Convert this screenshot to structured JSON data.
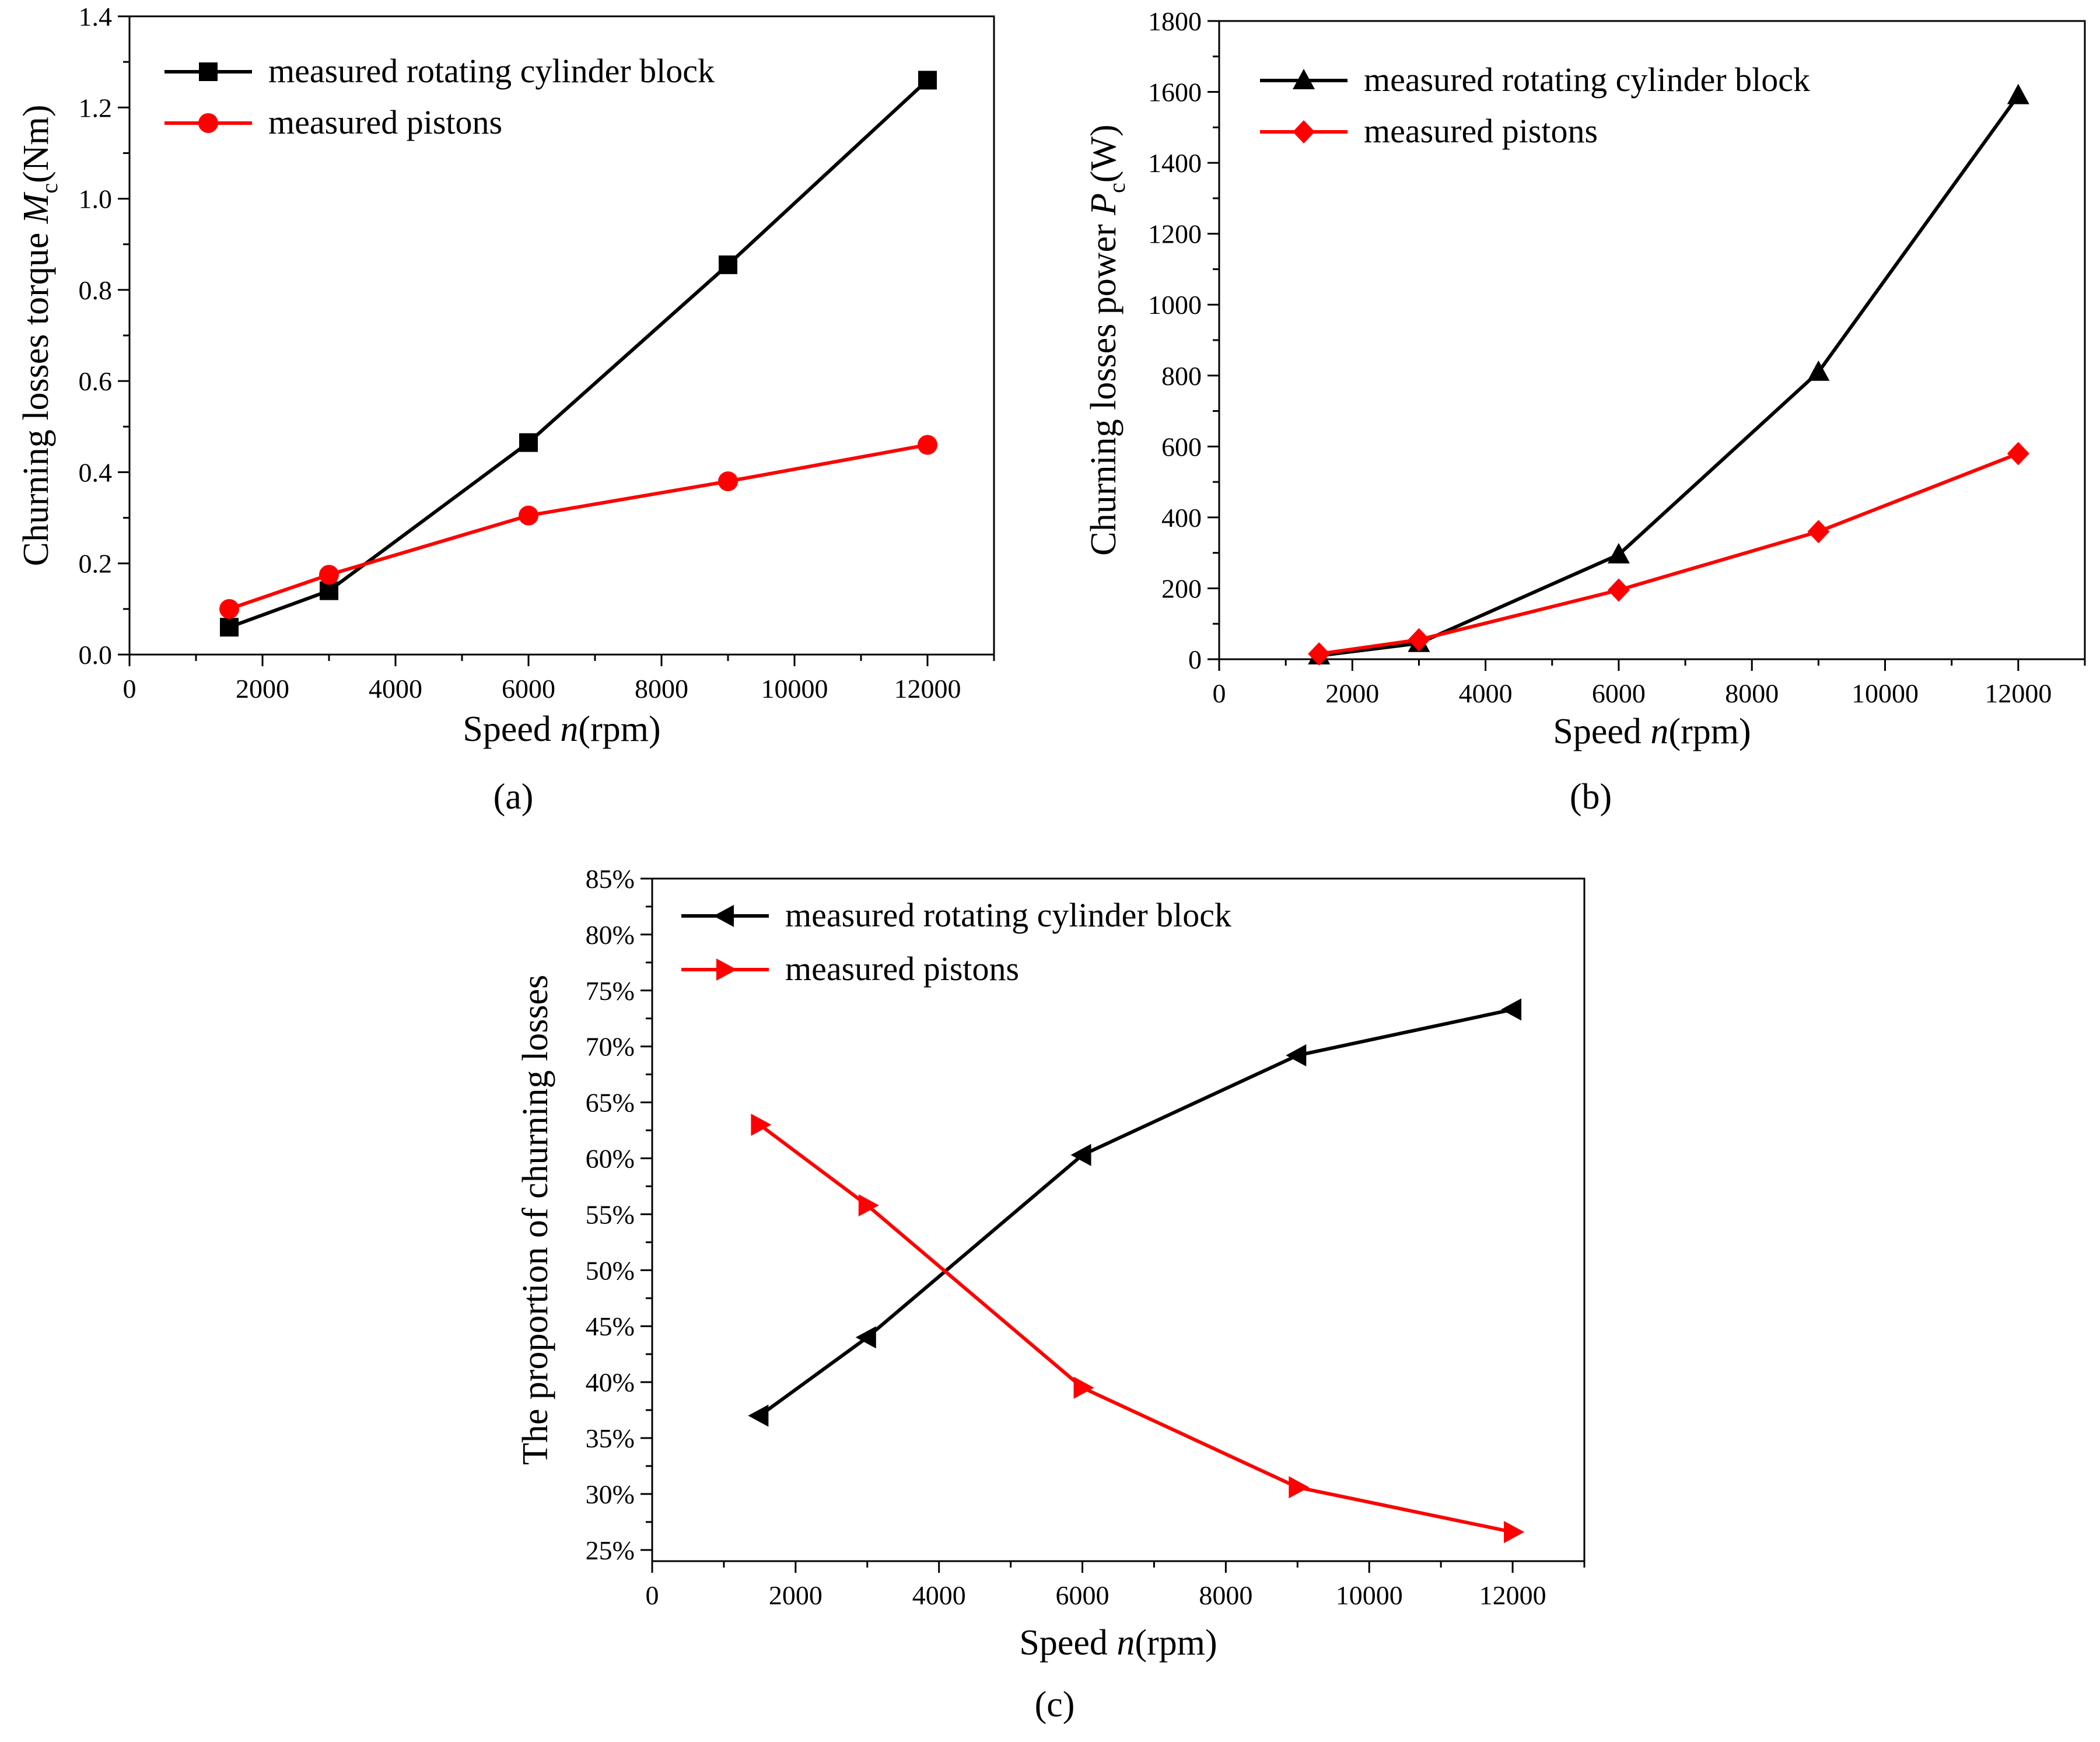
{
  "figure": {
    "panel_labels": [
      "(a)",
      "(b)",
      "(c)"
    ]
  },
  "chart_data": [
    {
      "id": "a",
      "type": "line",
      "panel_label": "(a)",
      "title": "",
      "xlabel": "Speed n(rpm)",
      "xlabel_parts": {
        "pre": "Speed ",
        "italic": "n",
        "post": "(rpm)"
      },
      "ylabel": "Churning losses torque Mc(Nm)",
      "ylabel_parts": {
        "pre": "Churning losses torque ",
        "italic": "M",
        "sub": "c",
        "post": "(Nm)"
      },
      "xlim": [
        0,
        13000
      ],
      "ylim": [
        0,
        1.4
      ],
      "xticks": [
        0,
        2000,
        4000,
        6000,
        8000,
        10000,
        12000
      ],
      "yticks": [
        0,
        0.2,
        0.4,
        0.6,
        0.8,
        1.0,
        1.2,
        1.4
      ],
      "ytick_labels": [
        "0.0",
        "0.2",
        "0.4",
        "0.6",
        "0.8",
        "1.0",
        "1.2",
        "1.4"
      ],
      "legend_position": "top-left",
      "x": [
        1500,
        3000,
        6000,
        9000,
        12000
      ],
      "series": [
        {
          "name": "measured rotating cylinder block",
          "color": "#000000",
          "marker": "square",
          "values": [
            0.06,
            0.14,
            0.465,
            0.855,
            1.26
          ]
        },
        {
          "name": "measured pistons",
          "color": "#ff0000",
          "marker": "circle",
          "values": [
            0.1,
            0.175,
            0.305,
            0.38,
            0.46
          ]
        }
      ]
    },
    {
      "id": "b",
      "type": "line",
      "panel_label": "(b)",
      "title": "",
      "xlabel": "Speed n(rpm)",
      "xlabel_parts": {
        "pre": "Speed ",
        "italic": "n",
        "post": "(rpm)"
      },
      "ylabel": "Churning losses power Pc(W)",
      "ylabel_parts": {
        "pre": "Churning losses power ",
        "italic": "P",
        "sub": "c",
        "post": "(W)"
      },
      "xlim": [
        0,
        13000
      ],
      "ylim": [
        0,
        1800
      ],
      "xticks": [
        0,
        2000,
        4000,
        6000,
        8000,
        10000,
        12000
      ],
      "yticks": [
        0,
        200,
        400,
        600,
        800,
        1000,
        1200,
        1400,
        1600,
        1800
      ],
      "ytick_labels": [
        "0",
        "200",
        "400",
        "600",
        "800",
        "1000",
        "1200",
        "1400",
        "1600",
        "1800"
      ],
      "legend_position": "top-left",
      "x": [
        1500,
        3000,
        6000,
        9000,
        12000
      ],
      "series": [
        {
          "name": "measured rotating cylinder block",
          "color": "#000000",
          "marker": "triangle-up",
          "values": [
            10,
            45,
            295,
            810,
            1590
          ]
        },
        {
          "name": "measured pistons",
          "color": "#ff0000",
          "marker": "diamond",
          "values": [
            15,
            55,
            195,
            360,
            580
          ]
        }
      ]
    },
    {
      "id": "c",
      "type": "line",
      "panel_label": "(c)",
      "title": "",
      "xlabel": "Speed n(rpm)",
      "xlabel_parts": {
        "pre": "Speed ",
        "italic": "n",
        "post": "(rpm)"
      },
      "ylabel": "The proportion of churning losses",
      "ylabel_parts": {
        "pre": "The proportion of churning losses",
        "italic": "",
        "sub": "",
        "post": ""
      },
      "xlim": [
        0,
        13000
      ],
      "ylim": [
        24,
        85
      ],
      "xticks": [
        0,
        2000,
        4000,
        6000,
        8000,
        10000,
        12000
      ],
      "yticks": [
        25,
        30,
        35,
        40,
        45,
        50,
        55,
        60,
        65,
        70,
        75,
        80,
        85
      ],
      "ytick_labels": [
        "25%",
        "30%",
        "35%",
        "40%",
        "45%",
        "50%",
        "55%",
        "60%",
        "65%",
        "70%",
        "75%",
        "80%",
        "85%"
      ],
      "legend_position": "top-left",
      "x": [
        1500,
        3000,
        6000,
        9000,
        12000
      ],
      "series": [
        {
          "name": "measured rotating cylinder block",
          "color": "#000000",
          "marker": "triangle-left",
          "values": [
            37,
            44,
            60.3,
            69.2,
            73.3
          ]
        },
        {
          "name": "measured pistons",
          "color": "#ff0000",
          "marker": "triangle-right",
          "values": [
            63,
            55.8,
            39.5,
            30.6,
            26.6
          ]
        }
      ]
    }
  ]
}
